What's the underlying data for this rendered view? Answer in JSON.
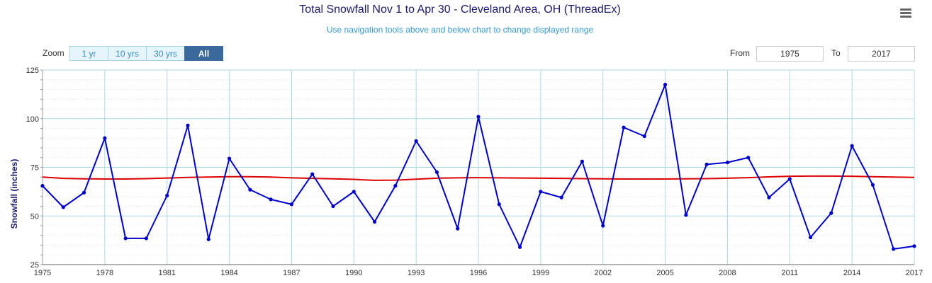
{
  "header": {
    "title": "Total Snowfall Nov 1 to Apr 30 - Cleveland Area, OH (ThreadEx)",
    "subtitle": "Use navigation tools above and below chart to change displayed range"
  },
  "zoom": {
    "label": "Zoom",
    "buttons": [
      "1 yr",
      "10 yrs",
      "30 yrs",
      "All"
    ],
    "active": "All"
  },
  "range": {
    "from_label": "From",
    "from_value": "1975",
    "to_label": "To",
    "to_value": "2017"
  },
  "colors": {
    "series": "#0000cc",
    "trend": "#dd0000",
    "grid": "#add8e6"
  },
  "icons": {
    "menu": "hamburger-menu-icon"
  },
  "chart_data": {
    "type": "line",
    "ylabel": "Snowfall (inches)",
    "xlabel": "",
    "xlim": [
      1975,
      2017
    ],
    "ylim": [
      25,
      125
    ],
    "yticks": [
      25,
      50,
      75,
      100,
      125
    ],
    "xticks": [
      1975,
      1978,
      1981,
      1984,
      1987,
      1990,
      1993,
      1996,
      1999,
      2002,
      2005,
      2008,
      2011,
      2014,
      2017
    ],
    "grid": true,
    "x": [
      1975,
      1976,
      1977,
      1978,
      1979,
      1980,
      1981,
      1982,
      1983,
      1984,
      1985,
      1986,
      1987,
      1988,
      1989,
      1990,
      1991,
      1992,
      1993,
      1994,
      1995,
      1996,
      1997,
      1998,
      1999,
      2000,
      2001,
      2002,
      2003,
      2004,
      2005,
      2006,
      2007,
      2008,
      2009,
      2010,
      2011,
      2012,
      2013,
      2014,
      2015,
      2016,
      2017
    ],
    "series": [
      {
        "kind": "observed",
        "values": [
          65.5,
          54.5,
          62,
          90,
          38.5,
          38.5,
          60.5,
          96.5,
          38,
          79.5,
          63.5,
          58.5,
          56,
          71.5,
          55,
          62.5,
          47,
          65.5,
          88.5,
          72.5,
          43.5,
          101,
          56,
          34,
          62.5,
          59.5,
          78,
          45,
          95.5,
          91,
          117.5,
          50.5,
          76.5,
          77.5,
          80,
          59.5,
          69,
          39,
          51.5,
          86,
          66,
          33,
          34.5
        ]
      },
      {
        "kind": "trend",
        "values": [
          70,
          69.3,
          69.1,
          69,
          69,
          69.2,
          69.5,
          69.8,
          70,
          70.2,
          70.2,
          70,
          69.6,
          69.3,
          69.1,
          68.8,
          68.3,
          68.4,
          68.9,
          69.4,
          69.6,
          69.7,
          69.6,
          69.5,
          69.4,
          69.3,
          69.2,
          69.1,
          69,
          69,
          69,
          69.1,
          69.2,
          69.4,
          69.7,
          70.1,
          70.4,
          70.5,
          70.5,
          70.4,
          70.2,
          70,
          69.8
        ]
      }
    ]
  }
}
